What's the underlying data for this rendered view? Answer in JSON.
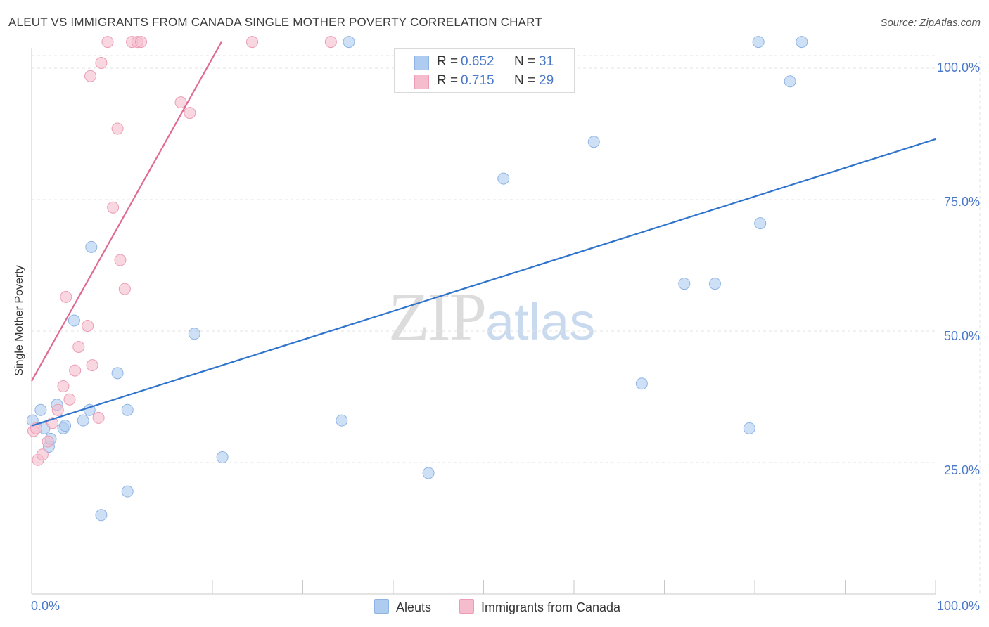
{
  "header": {
    "title": "ALEUT VS IMMIGRANTS FROM CANADA SINGLE MOTHER POVERTY CORRELATION CHART",
    "source": "Source: ZipAtlas.com"
  },
  "watermark": {
    "zip": "ZIP",
    "atlas": "atlas"
  },
  "legend": {
    "rows": [
      {
        "r_label": "R =",
        "r_value": "0.652",
        "n_label": "N =",
        "n_value": "31"
      },
      {
        "r_label": "R =",
        "r_value": "0.715",
        "n_label": "N =",
        "n_value": "29"
      }
    ]
  },
  "bottom_legend": {
    "series_a": "Aleuts",
    "series_b": "Immigrants from Canada"
  },
  "colors": {
    "aleut_fill": "#aecbf0",
    "aleut_stroke": "#8fb4e3",
    "aleut_line": "#2f74cc",
    "canada_fill": "#f5bccd",
    "canada_stroke": "#ec9db5",
    "canada_line": "#e06a93",
    "tick_label": "#4a78c8",
    "grid": "#e3e3e3"
  },
  "chart_data": {
    "type": "scatter",
    "title": "ALEUT VS IMMIGRANTS FROM CANADA SINGLE MOTHER POVERTY CORRELATION CHART",
    "xlabel": "",
    "ylabel": "Single Mother Poverty",
    "xlim": [
      0,
      100
    ],
    "ylim": [
      0,
      102.5
    ],
    "x_tick_labels": [
      "0.0%",
      "100.0%"
    ],
    "y_tick_labels": [
      {
        "value": 25,
        "label": "25.0%"
      },
      {
        "value": 50,
        "label": "50.0%"
      },
      {
        "value": 75,
        "label": "75.0%"
      },
      {
        "value": 100,
        "label": "100.0%"
      }
    ],
    "series": [
      {
        "name": "Aleuts",
        "color": "#aecbf0",
        "points": [
          [
            0.1,
            33
          ],
          [
            1.0,
            35
          ],
          [
            1.4,
            31.5
          ],
          [
            1.9,
            28
          ],
          [
            2.1,
            29.5
          ],
          [
            2.8,
            36
          ],
          [
            3.5,
            31.5
          ],
          [
            3.7,
            32
          ],
          [
            4.7,
            52
          ],
          [
            5.7,
            33
          ],
          [
            6.4,
            35
          ],
          [
            6.6,
            66
          ],
          [
            7.7,
            15
          ],
          [
            9.5,
            42
          ],
          [
            10.6,
            35
          ],
          [
            10.6,
            19.5
          ],
          [
            18.0,
            49.5
          ],
          [
            21.1,
            26
          ],
          [
            34.3,
            33
          ],
          [
            35.1,
            105
          ],
          [
            43.9,
            23
          ],
          [
            52.2,
            79
          ],
          [
            62.2,
            86
          ],
          [
            67.5,
            40
          ],
          [
            72.2,
            59
          ],
          [
            75.6,
            59
          ],
          [
            79.4,
            31.5
          ],
          [
            80.4,
            105
          ],
          [
            80.6,
            70.5
          ],
          [
            83.9,
            97.5
          ],
          [
            85.2,
            105
          ]
        ]
      },
      {
        "name": "Immigrants from Canada",
        "color": "#f5bccd",
        "points": [
          [
            0.2,
            31
          ],
          [
            0.5,
            31.5
          ],
          [
            0.7,
            25.5
          ],
          [
            1.2,
            26.5
          ],
          [
            1.8,
            29
          ],
          [
            2.3,
            32.5
          ],
          [
            2.9,
            35
          ],
          [
            3.5,
            39.5
          ],
          [
            3.8,
            56.5
          ],
          [
            4.2,
            37
          ],
          [
            4.8,
            42.5
          ],
          [
            5.2,
            47
          ],
          [
            6.2,
            51
          ],
          [
            6.5,
            98.5
          ],
          [
            6.7,
            43.5
          ],
          [
            7.4,
            33.5
          ],
          [
            7.7,
            101
          ],
          [
            8.4,
            105
          ],
          [
            9.0,
            73.5
          ],
          [
            9.5,
            88.5
          ],
          [
            9.8,
            63.5
          ],
          [
            10.3,
            58
          ],
          [
            11.1,
            105
          ],
          [
            11.7,
            105
          ],
          [
            12.1,
            105
          ],
          [
            16.5,
            93.5
          ],
          [
            17.5,
            91.5
          ],
          [
            24.4,
            105
          ],
          [
            33.1,
            105
          ]
        ]
      }
    ],
    "trend_lines": [
      {
        "series": "Aleuts",
        "x": [
          0,
          100
        ],
        "y": [
          32,
          86.5
        ]
      },
      {
        "series": "Immigrants from Canada",
        "x": [
          0,
          21
        ],
        "y": [
          40.5,
          105
        ]
      }
    ],
    "legend_position": "top-center",
    "grid": true
  }
}
